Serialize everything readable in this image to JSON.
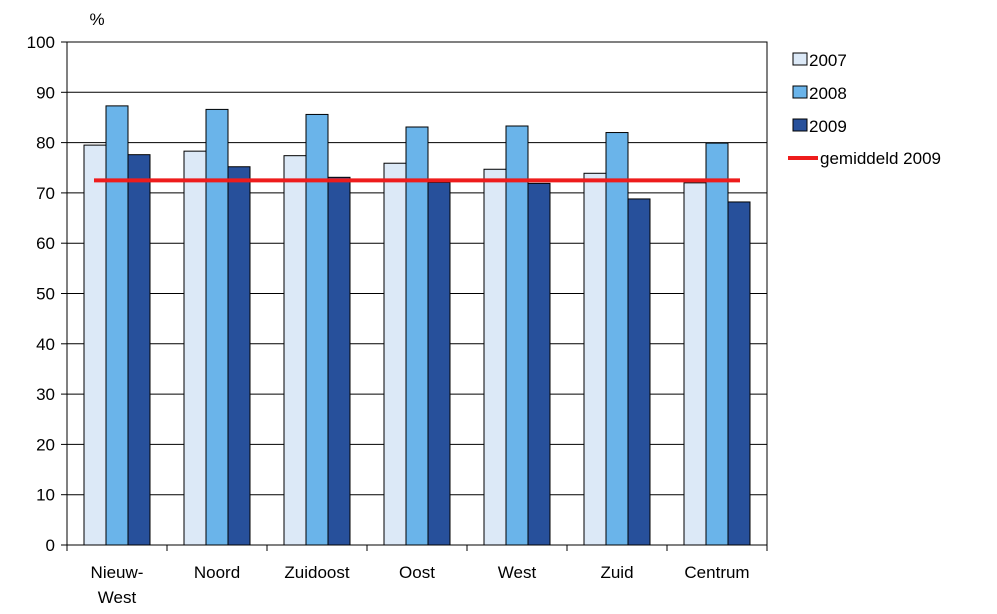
{
  "chart_data": {
    "type": "bar",
    "ylabel": "%",
    "ylim": [
      0,
      100
    ],
    "ytick_step": 10,
    "yticks": [
      "0",
      "10",
      "20",
      "30",
      "40",
      "50",
      "60",
      "70",
      "80",
      "90",
      "100"
    ],
    "grid": true,
    "legend_position": "right",
    "categories": [
      [
        "Nieuw-",
        "West"
      ],
      [
        "Noord"
      ],
      [
        "Zuidoost"
      ],
      [
        "Oost"
      ],
      [
        "West"
      ],
      [
        "Zuid"
      ],
      [
        "Centrum"
      ]
    ],
    "series": [
      {
        "name": "2007",
        "color": "#dce9f7",
        "values": [
          79.5,
          78.3,
          77.4,
          75.9,
          74.7,
          73.9,
          72.0
        ]
      },
      {
        "name": "2008",
        "color": "#6ab4ea",
        "values": [
          87.3,
          86.6,
          85.6,
          83.1,
          83.3,
          82.0,
          79.9
        ]
      },
      {
        "name": "2009",
        "color": "#27509b",
        "values": [
          77.6,
          75.2,
          73.1,
          72.1,
          71.9,
          68.8,
          68.2
        ]
      }
    ],
    "reference_line": {
      "name": "gemiddeld 2009",
      "value": 72.5,
      "color": "#ee1c1c"
    }
  }
}
